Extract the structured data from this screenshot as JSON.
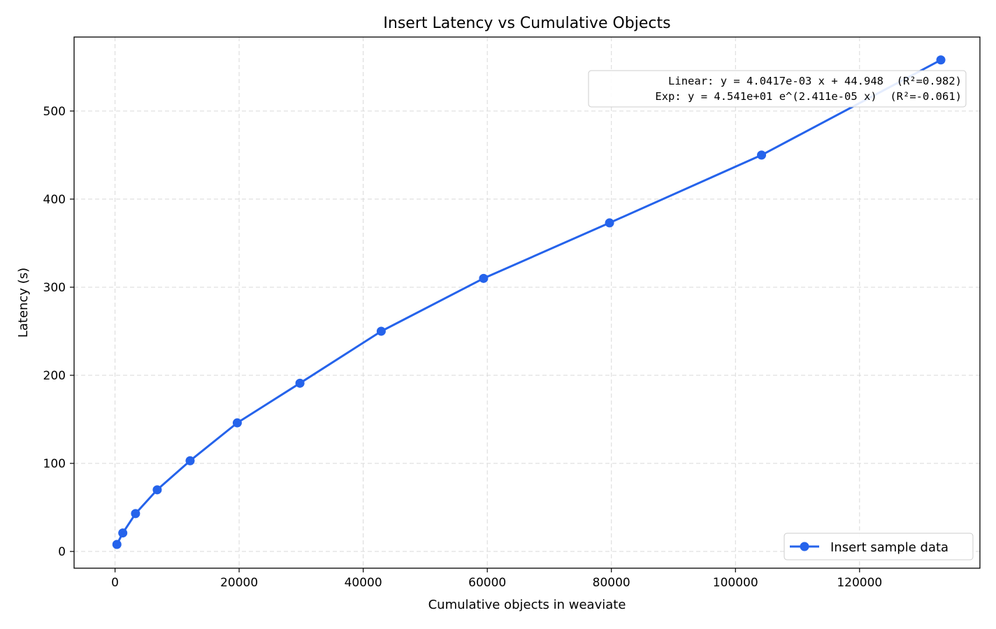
{
  "chart_data": {
    "type": "line",
    "title": "Insert Latency vs Cumulative Objects",
    "xlabel": "Cumulative objects in weaviate",
    "ylabel": "Latency (s)",
    "xlim": [
      -6600,
      139400
    ],
    "ylim": [
      -19,
      584
    ],
    "x_ticks": [
      0,
      20000,
      40000,
      60000,
      80000,
      100000,
      120000
    ],
    "y_ticks": [
      0,
      100,
      200,
      300,
      400,
      500
    ],
    "grid": true,
    "legend_position": "lower-right",
    "series": [
      {
        "name": "Insert sample data",
        "color": "#2563eb",
        "marker": "circle",
        "x": [
          300,
          1250,
          3300,
          6800,
          12100,
          19700,
          29800,
          42900,
          59400,
          79700,
          104200,
          133100
        ],
        "y": [
          8,
          21,
          43,
          70,
          103,
          146,
          191,
          250,
          310,
          373,
          450,
          558
        ]
      }
    ],
    "annotations": [
      "  Linear: y = 4.0417e-03 x + 44.948  (R²=0.982)",
      "Exp: y = 4.541e+01 e^(2.411e-05 x)  (R²=-0.061)"
    ]
  }
}
